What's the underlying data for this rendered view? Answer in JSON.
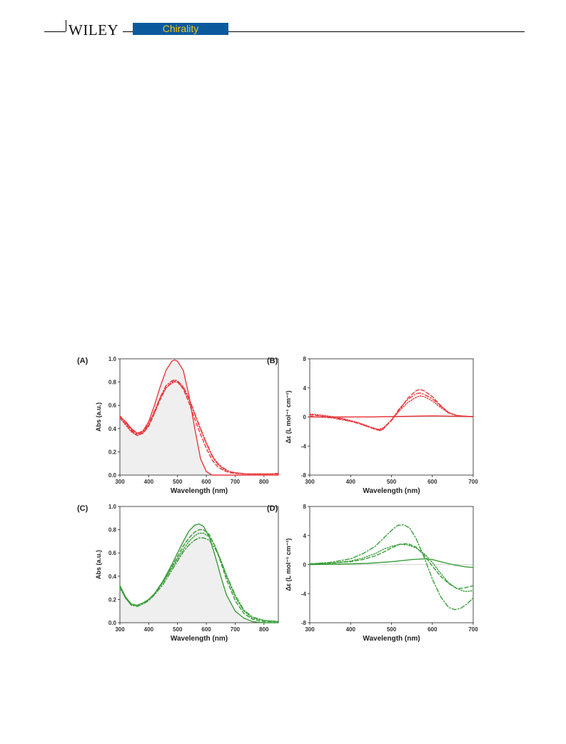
{
  "header": {
    "publisher": "WILEY",
    "journal": "Chirality",
    "colors": {
      "badge_bg": "#0c5a9e",
      "badge_text": "#f5c518",
      "rule": "#000000"
    }
  },
  "chart_data": [
    {
      "panel": "(A)",
      "type": "line",
      "color": "#e8393e",
      "xlabel": "Wavelength (nm)",
      "ylabel": "Abs (a.u.)",
      "xlim": [
        300,
        850
      ],
      "ylim": [
        0,
        1.0
      ],
      "xticks": [
        "300",
        "400",
        "500",
        "600",
        "700",
        "800"
      ],
      "yticks": [
        "0.0",
        "0.2",
        "0.4",
        "0.6",
        "0.8",
        "1.0"
      ],
      "series": [
        {
          "style": "solid",
          "x": [
            300,
            320,
            340,
            360,
            380,
            400,
            420,
            440,
            460,
            480,
            490,
            500,
            520,
            540,
            560,
            580,
            600,
            620,
            640,
            680,
            720,
            760,
            800,
            850
          ],
          "y": [
            0.5,
            0.46,
            0.4,
            0.36,
            0.38,
            0.46,
            0.6,
            0.76,
            0.9,
            0.98,
            0.99,
            0.98,
            0.9,
            0.68,
            0.4,
            0.14,
            0.03,
            0.0,
            0.0,
            0.0,
            0.0,
            0.0,
            0.0,
            0.0
          ]
        },
        {
          "style": "dash",
          "x": [
            300,
            320,
            340,
            360,
            380,
            400,
            420,
            440,
            460,
            480,
            490,
            500,
            520,
            540,
            560,
            580,
            600,
            620,
            640,
            660,
            680,
            700,
            740,
            780,
            820,
            850
          ],
          "y": [
            0.5,
            0.44,
            0.38,
            0.34,
            0.36,
            0.42,
            0.53,
            0.65,
            0.75,
            0.8,
            0.81,
            0.8,
            0.74,
            0.62,
            0.48,
            0.35,
            0.23,
            0.13,
            0.07,
            0.04,
            0.02,
            0.015,
            0.01,
            0.01,
            0.01,
            0.01
          ]
        },
        {
          "style": "dot",
          "x": [
            300,
            320,
            340,
            360,
            380,
            400,
            420,
            440,
            460,
            480,
            490,
            500,
            520,
            540,
            560,
            580,
            600,
            620,
            640,
            660,
            680,
            700,
            740,
            780,
            820,
            850
          ],
          "y": [
            0.49,
            0.43,
            0.37,
            0.34,
            0.36,
            0.43,
            0.54,
            0.66,
            0.75,
            0.79,
            0.8,
            0.8,
            0.75,
            0.65,
            0.52,
            0.39,
            0.27,
            0.16,
            0.09,
            0.05,
            0.03,
            0.02,
            0.01,
            0.01,
            0.01,
            0.01
          ]
        },
        {
          "style": "dashdot",
          "x": [
            300,
            320,
            340,
            360,
            380,
            400,
            420,
            440,
            460,
            480,
            490,
            500,
            520,
            540,
            560,
            580,
            600,
            620,
            640,
            660,
            680,
            700,
            740,
            780,
            820,
            850
          ],
          "y": [
            0.51,
            0.45,
            0.39,
            0.35,
            0.37,
            0.44,
            0.55,
            0.67,
            0.77,
            0.81,
            0.82,
            0.81,
            0.76,
            0.66,
            0.53,
            0.4,
            0.28,
            0.17,
            0.1,
            0.06,
            0.03,
            0.02,
            0.01,
            0.01,
            0.01,
            0.015
          ]
        }
      ]
    },
    {
      "panel": "(B)",
      "type": "line",
      "color": "#e8393e",
      "xlabel": "Wavelength (nm)",
      "ylabel": "Δε (L mol⁻¹ cm⁻¹)",
      "xlim": [
        300,
        700
      ],
      "ylim": [
        -8,
        8
      ],
      "xticks": [
        "300",
        "400",
        "500",
        "600",
        "700"
      ],
      "yticks": [
        "-8",
        "-4",
        "0",
        "4",
        "8"
      ],
      "series": [
        {
          "style": "solid",
          "x": [
            300,
            350,
            400,
            450,
            500,
            550,
            600,
            650,
            700
          ],
          "y": [
            0.0,
            0.0,
            0.0,
            0.0,
            0.05,
            0.1,
            0.15,
            0.1,
            0.05
          ]
        },
        {
          "style": "dash",
          "x": [
            300,
            320,
            350,
            380,
            400,
            420,
            440,
            460,
            470,
            480,
            500,
            520,
            540,
            560,
            570,
            580,
            600,
            620,
            640,
            660,
            680,
            700
          ],
          "y": [
            0.3,
            0.2,
            0.0,
            -0.3,
            -0.6,
            -0.9,
            -1.3,
            -1.7,
            -1.8,
            -1.6,
            -0.5,
            1.0,
            2.6,
            3.6,
            3.8,
            3.6,
            2.8,
            1.6,
            0.6,
            0.2,
            0.1,
            0.05
          ]
        },
        {
          "style": "dot",
          "x": [
            300,
            320,
            350,
            380,
            400,
            420,
            440,
            460,
            470,
            480,
            500,
            520,
            540,
            560,
            570,
            580,
            600,
            620,
            640,
            660,
            680,
            700
          ],
          "y": [
            0.4,
            0.3,
            0.1,
            -0.2,
            -0.5,
            -0.8,
            -1.2,
            -1.6,
            -1.7,
            -1.5,
            -0.4,
            0.9,
            2.0,
            2.7,
            2.9,
            2.8,
            2.2,
            1.3,
            0.5,
            0.2,
            0.1,
            0.05
          ]
        },
        {
          "style": "dashdot",
          "x": [
            300,
            320,
            350,
            380,
            400,
            420,
            440,
            460,
            470,
            480,
            500,
            520,
            540,
            560,
            570,
            580,
            600,
            620,
            640,
            660,
            680,
            700
          ],
          "y": [
            0.1,
            0.0,
            -0.1,
            -0.4,
            -0.6,
            -0.9,
            -1.3,
            -1.7,
            -1.9,
            -1.7,
            -0.4,
            1.2,
            2.4,
            3.2,
            3.3,
            3.1,
            2.5,
            1.5,
            0.6,
            0.2,
            0.1,
            0.05
          ]
        }
      ]
    },
    {
      "panel": "(C)",
      "type": "line",
      "color": "#3a9d3a",
      "xlabel": "Wavelength (nm)",
      "ylabel": "Abs (a.u.)",
      "xlim": [
        300,
        850
      ],
      "ylim": [
        0,
        1.0
      ],
      "xticks": [
        "300",
        "400",
        "500",
        "600",
        "700",
        "800"
      ],
      "yticks": [
        "0.0",
        "0.2",
        "0.4",
        "0.6",
        "0.8",
        "1.0"
      ],
      "series": [
        {
          "style": "solid",
          "x": [
            300,
            320,
            340,
            360,
            380,
            400,
            420,
            450,
            480,
            500,
            520,
            540,
            560,
            575,
            590,
            610,
            630,
            650,
            670,
            700,
            730,
            760,
            800,
            850
          ],
          "y": [
            0.32,
            0.22,
            0.16,
            0.15,
            0.17,
            0.2,
            0.25,
            0.36,
            0.5,
            0.6,
            0.7,
            0.79,
            0.84,
            0.85,
            0.83,
            0.74,
            0.58,
            0.4,
            0.24,
            0.1,
            0.04,
            0.01,
            0.0,
            0.0
          ]
        },
        {
          "style": "dash",
          "x": [
            300,
            320,
            340,
            360,
            380,
            400,
            420,
            450,
            480,
            500,
            520,
            540,
            560,
            575,
            590,
            610,
            630,
            650,
            670,
            700,
            730,
            760,
            800,
            850
          ],
          "y": [
            0.31,
            0.22,
            0.16,
            0.15,
            0.17,
            0.2,
            0.25,
            0.35,
            0.48,
            0.57,
            0.66,
            0.73,
            0.78,
            0.8,
            0.8,
            0.76,
            0.66,
            0.52,
            0.37,
            0.19,
            0.08,
            0.03,
            0.01,
            0.01
          ]
        },
        {
          "style": "dot",
          "x": [
            300,
            320,
            340,
            360,
            380,
            400,
            420,
            450,
            480,
            500,
            520,
            540,
            560,
            575,
            590,
            610,
            630,
            650,
            670,
            700,
            730,
            760,
            800,
            850
          ],
          "y": [
            0.3,
            0.21,
            0.15,
            0.15,
            0.17,
            0.2,
            0.25,
            0.35,
            0.47,
            0.55,
            0.63,
            0.7,
            0.75,
            0.77,
            0.77,
            0.74,
            0.66,
            0.54,
            0.4,
            0.22,
            0.1,
            0.04,
            0.02,
            0.01
          ]
        },
        {
          "style": "dashdot",
          "x": [
            300,
            320,
            340,
            360,
            380,
            400,
            420,
            450,
            480,
            500,
            520,
            540,
            560,
            575,
            590,
            610,
            630,
            650,
            670,
            700,
            730,
            760,
            800,
            850
          ],
          "y": [
            0.31,
            0.21,
            0.15,
            0.14,
            0.16,
            0.19,
            0.24,
            0.33,
            0.45,
            0.53,
            0.61,
            0.67,
            0.71,
            0.73,
            0.73,
            0.71,
            0.64,
            0.54,
            0.41,
            0.24,
            0.11,
            0.05,
            0.02,
            0.01
          ]
        }
      ]
    },
    {
      "panel": "(D)",
      "type": "line",
      "color": "#3a9d3a",
      "xlabel": "Wavelength (nm)",
      "ylabel": "Δε (L mol⁻¹ cm⁻¹)",
      "xlim": [
        300,
        700
      ],
      "ylim": [
        -8,
        8
      ],
      "xticks": [
        "300",
        "400",
        "500",
        "600",
        "700"
      ],
      "yticks": [
        "-8",
        "-4",
        "0",
        "4",
        "8"
      ],
      "series": [
        {
          "style": "solid",
          "x": [
            300,
            350,
            400,
            450,
            500,
            550,
            580,
            600,
            620,
            650,
            680,
            700
          ],
          "y": [
            0.0,
            0.05,
            0.1,
            0.2,
            0.4,
            0.7,
            0.8,
            0.7,
            0.4,
            0.0,
            -0.3,
            -0.4
          ]
        },
        {
          "style": "dash",
          "x": [
            300,
            350,
            400,
            430,
            460,
            480,
            500,
            520,
            540,
            560,
            580,
            600,
            620,
            640,
            660,
            680,
            700
          ],
          "y": [
            0.1,
            0.2,
            0.4,
            0.7,
            1.2,
            1.7,
            2.3,
            2.8,
            2.9,
            2.4,
            1.3,
            -0.2,
            -1.6,
            -2.6,
            -3.3,
            -3.2,
            -2.9
          ]
        },
        {
          "style": "dot",
          "x": [
            300,
            350,
            400,
            430,
            460,
            480,
            500,
            520,
            540,
            560,
            580,
            600,
            620,
            640,
            660,
            680,
            700
          ],
          "y": [
            0.1,
            0.2,
            0.5,
            0.9,
            1.5,
            2.1,
            2.5,
            2.8,
            2.7,
            2.3,
            1.5,
            0.3,
            -1.2,
            -2.5,
            -3.3,
            -3.7,
            -3.6
          ]
        },
        {
          "style": "dashdot",
          "x": [
            300,
            350,
            400,
            430,
            460,
            480,
            500,
            515,
            530,
            545,
            560,
            580,
            600,
            620,
            640,
            655,
            670,
            685,
            700
          ],
          "y": [
            0.1,
            0.3,
            0.8,
            1.5,
            2.5,
            3.6,
            4.7,
            5.4,
            5.5,
            5.0,
            3.6,
            1.0,
            -2.0,
            -4.4,
            -5.9,
            -6.2,
            -6.0,
            -5.4,
            -4.6
          ]
        }
      ]
    }
  ]
}
